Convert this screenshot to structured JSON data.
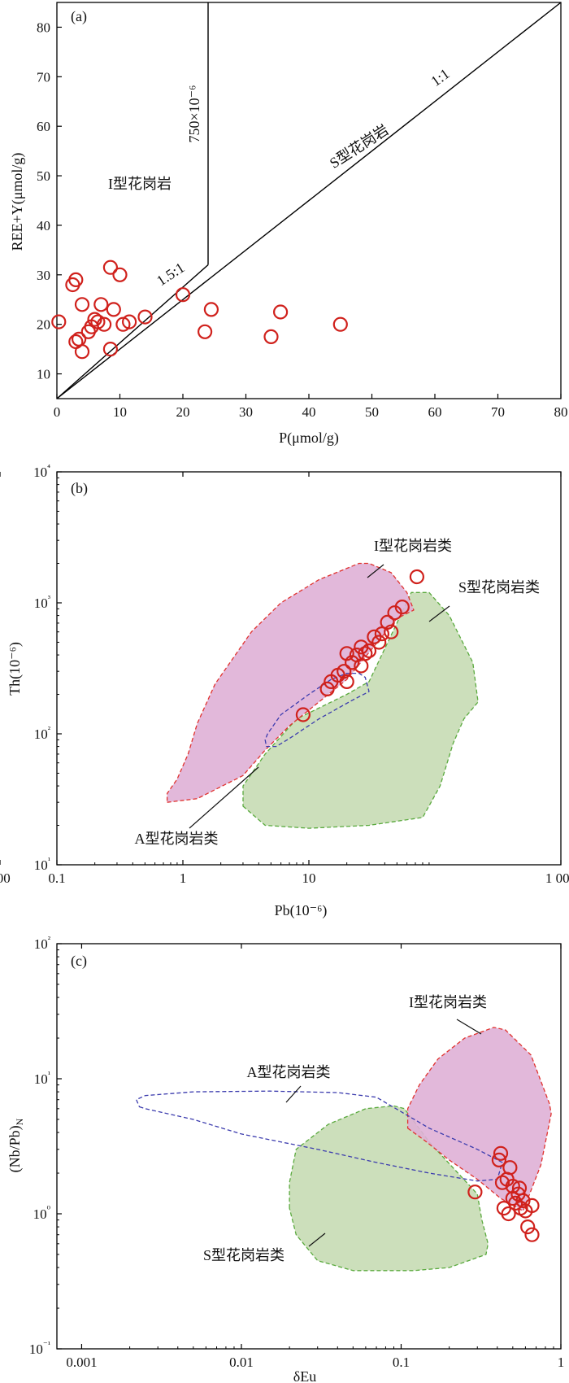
{
  "charts": [
    {
      "panel": "(a)",
      "chart_data": {
        "type": "scatter",
        "xlabel": "P(μmol/g)",
        "ylabel": "REE+Y(μmol/g)",
        "xlim": [
          0,
          80
        ],
        "ylim": [
          5,
          85
        ],
        "x_scale": "linear",
        "y_scale": "linear",
        "x_ticks": [
          "0",
          "10",
          "20",
          "30",
          "40",
          "50",
          "60",
          "70",
          "80"
        ],
        "y_ticks": [
          "10",
          "20",
          "30",
          "40",
          "50",
          "60",
          "70",
          "80"
        ],
        "lines": [
          {
            "label": "1:1",
            "points": [
              [
                0,
                5
              ],
              [
                80,
                85
              ]
            ]
          },
          {
            "label": "1.5:1",
            "points": [
              [
                0,
                5
              ],
              [
                24,
                32
              ]
            ]
          },
          {
            "label": "750×10⁻⁶",
            "points": [
              [
                24,
                32
              ],
              [
                24,
                85
              ]
            ]
          }
        ],
        "region_labels": [
          "I型花岗岩",
          "S型花岗岩"
        ],
        "points": [
          {
            "x": 0.3,
            "y": 20.5
          },
          {
            "x": 2.5,
            "y": 28
          },
          {
            "x": 3,
            "y": 29
          },
          {
            "x": 3,
            "y": 16.5
          },
          {
            "x": 3.5,
            "y": 17
          },
          {
            "x": 4,
            "y": 14.5
          },
          {
            "x": 4,
            "y": 24
          },
          {
            "x": 5,
            "y": 18.5
          },
          {
            "x": 5.5,
            "y": 19.5
          },
          {
            "x": 6,
            "y": 21
          },
          {
            "x": 6.5,
            "y": 20.5
          },
          {
            "x": 7,
            "y": 24
          },
          {
            "x": 7.5,
            "y": 20
          },
          {
            "x": 8.5,
            "y": 31.5
          },
          {
            "x": 8.5,
            "y": 15
          },
          {
            "x": 9,
            "y": 23
          },
          {
            "x": 10,
            "y": 30
          },
          {
            "x": 10.5,
            "y": 20
          },
          {
            "x": 11.5,
            "y": 20.5
          },
          {
            "x": 14,
            "y": 21.5
          },
          {
            "x": 20,
            "y": 26
          },
          {
            "x": 23.5,
            "y": 18.5
          },
          {
            "x": 24.5,
            "y": 23
          },
          {
            "x": 34,
            "y": 17.5
          },
          {
            "x": 35.5,
            "y": 22.5
          },
          {
            "x": 45,
            "y": 20
          }
        ]
      }
    },
    {
      "panel": "(b)",
      "chart_data": {
        "type": "scatter",
        "xlabel": "Pb(10⁻⁶)",
        "ylabel": "Th(10⁻⁶)",
        "xlim": [
          0.1,
          1000
        ],
        "ylim": [
          10,
          10000
        ],
        "x_scale": "log",
        "y_scale": "log",
        "x_ticks": [
          "0.1",
          "1",
          "10",
          "100",
          "1 000"
        ],
        "y_ticks": [
          "10¹",
          "10²",
          "10³",
          "10⁴"
        ],
        "regions": [
          {
            "label": "I型花岗岩类",
            "color": "#dfb0d6",
            "points": [
              [
                0.75,
                30
              ],
              [
                1.3,
                32
              ],
              [
                3,
                48
              ],
              [
                4.5,
                75
              ],
              [
                7,
                115
              ],
              [
                20,
                260
              ],
              [
                50,
                760
              ],
              [
                68,
                880
              ],
              [
                60,
                1200
              ],
              [
                45,
                1700
              ],
              [
                30,
                2000
              ],
              [
                25,
                2000
              ],
              [
                12,
                1500
              ],
              [
                6,
                1000
              ],
              [
                3.5,
                600
              ],
              [
                1.8,
                240
              ],
              [
                1.3,
                120
              ],
              [
                1.1,
                70
              ],
              [
                0.9,
                45
              ],
              [
                0.75,
                35
              ]
            ]
          },
          {
            "label": "S型花岗岩类",
            "color": "#c7dcb4",
            "points": [
              [
                3,
                28
              ],
              [
                4.5,
                20
              ],
              [
                10,
                19
              ],
              [
                30,
                20
              ],
              [
                80,
                23
              ],
              [
                110,
                40
              ],
              [
                140,
                85
              ],
              [
                170,
                130
              ],
              [
                220,
                175
              ],
              [
                200,
                350
              ],
              [
                130,
                800
              ],
              [
                90,
                1200
              ],
              [
                65,
                1200
              ],
              [
                50,
                700
              ],
              [
                30,
                250
              ],
              [
                20,
                200
              ],
              [
                8,
                130
              ],
              [
                4.5,
                70
              ],
              [
                3,
                40
              ]
            ]
          },
          {
            "label": "A型花岗岩类",
            "color": "#3c3cae",
            "points": [
              [
                4.5,
                90
              ],
              [
                4.6,
                80
              ],
              [
                5.5,
                80
              ],
              [
                7,
                92
              ],
              [
                12,
                130
              ],
              [
                22,
                180
              ],
              [
                30,
                210
              ],
              [
                28,
                270
              ],
              [
                25,
                290
              ],
              [
                20,
                290
              ],
              [
                15,
                260
              ],
              [
                10,
                200
              ],
              [
                6,
                140
              ],
              [
                4.7,
                100
              ]
            ]
          }
        ],
        "points": [
          {
            "x": 9,
            "y": 140
          },
          {
            "x": 14,
            "y": 220
          },
          {
            "x": 15,
            "y": 250
          },
          {
            "x": 17,
            "y": 280
          },
          {
            "x": 19,
            "y": 300
          },
          {
            "x": 20,
            "y": 250
          },
          {
            "x": 20,
            "y": 410
          },
          {
            "x": 22,
            "y": 350
          },
          {
            "x": 24,
            "y": 400
          },
          {
            "x": 26,
            "y": 330
          },
          {
            "x": 26,
            "y": 460
          },
          {
            "x": 28,
            "y": 410
          },
          {
            "x": 30,
            "y": 430
          },
          {
            "x": 33,
            "y": 550
          },
          {
            "x": 36,
            "y": 500
          },
          {
            "x": 38,
            "y": 580
          },
          {
            "x": 42,
            "y": 710
          },
          {
            "x": 45,
            "y": 600
          },
          {
            "x": 48,
            "y": 840
          },
          {
            "x": 55,
            "y": 930
          },
          {
            "x": 72,
            "y": 1580
          }
        ]
      }
    },
    {
      "panel": "(c)",
      "chart_data": {
        "type": "scatter",
        "xlabel": "δEu",
        "ylabel": "(Nb/Pb)N",
        "xlim": [
          0.0007,
          1
        ],
        "ylim": [
          0.1,
          100
        ],
        "x_scale": "log",
        "y_scale": "log",
        "x_ticks": [
          "0.001",
          "0.01",
          "0.1",
          "1"
        ],
        "y_ticks": [
          "10⁻¹",
          "10⁰",
          "10¹",
          "10²"
        ],
        "regions": [
          {
            "label": "I型花岗岩类",
            "color": "#dfb0d6",
            "points": [
              [
                0.11,
                4.3
              ],
              [
                0.14,
                3.5
              ],
              [
                0.2,
                2.5
              ],
              [
                0.3,
                1.8
              ],
              [
                0.42,
                1.3
              ],
              [
                0.58,
                1.05
              ],
              [
                0.75,
                2.3
              ],
              [
                0.87,
                5.5
              ],
              [
                0.85,
                6.5
              ],
              [
                0.65,
                15
              ],
              [
                0.45,
                23
              ],
              [
                0.38,
                24
              ],
              [
                0.25,
                20
              ],
              [
                0.17,
                14
              ],
              [
                0.13,
                9
              ],
              [
                0.11,
                6
              ]
            ]
          },
          {
            "label": "S型花岗岩类",
            "color": "#c7dcb4",
            "points": [
              [
                0.02,
                1.1
              ],
              [
                0.02,
                1.7
              ],
              [
                0.022,
                3
              ],
              [
                0.035,
                4.6
              ],
              [
                0.06,
                6
              ],
              [
                0.09,
                6.3
              ],
              [
                0.105,
                6
              ],
              [
                0.15,
                3.4
              ],
              [
                0.3,
                1.4
              ],
              [
                0.32,
                0.9
              ],
              [
                0.35,
                0.6
              ],
              [
                0.34,
                0.5
              ],
              [
                0.2,
                0.4
              ],
              [
                0.12,
                0.38
              ],
              [
                0.05,
                0.38
              ],
              [
                0.03,
                0.45
              ],
              [
                0.022,
                0.7
              ]
            ]
          },
          {
            "label": "A型花岗岩类",
            "color": "#3c3cae",
            "points": [
              [
                0.0023,
                6.2
              ],
              [
                0.0025,
                6.0
              ],
              [
                0.005,
                5.0
              ],
              [
                0.01,
                3.9
              ],
              [
                0.03,
                3.0
              ],
              [
                0.07,
                2.4
              ],
              [
                0.15,
                2.0
              ],
              [
                0.3,
                1.75
              ],
              [
                0.4,
                1.8
              ],
              [
                0.43,
                2.4
              ],
              [
                0.3,
                3.0
              ],
              [
                0.15,
                4.3
              ],
              [
                0.07,
                7.3
              ],
              [
                0.04,
                7.9
              ],
              [
                0.015,
                8.1
              ],
              [
                0.005,
                8.0
              ],
              [
                0.0025,
                7.5
              ],
              [
                0.0022,
                7.0
              ]
            ]
          }
        ],
        "points": [
          {
            "x": 0.29,
            "y": 1.45
          },
          {
            "x": 0.41,
            "y": 2.5
          },
          {
            "x": 0.42,
            "y": 2.8
          },
          {
            "x": 0.43,
            "y": 1.7
          },
          {
            "x": 0.44,
            "y": 1.1
          },
          {
            "x": 0.46,
            "y": 1.8
          },
          {
            "x": 0.47,
            "y": 1.0
          },
          {
            "x": 0.48,
            "y": 2.2
          },
          {
            "x": 0.5,
            "y": 1.6
          },
          {
            "x": 0.5,
            "y": 1.3
          },
          {
            "x": 0.52,
            "y": 1.2
          },
          {
            "x": 0.54,
            "y": 1.4
          },
          {
            "x": 0.55,
            "y": 1.55
          },
          {
            "x": 0.56,
            "y": 1.1
          },
          {
            "x": 0.58,
            "y": 1.25
          },
          {
            "x": 0.6,
            "y": 1.05
          },
          {
            "x": 0.62,
            "y": 0.8
          },
          {
            "x": 0.66,
            "y": 0.7
          },
          {
            "x": 0.66,
            "y": 1.15
          }
        ]
      }
    }
  ]
}
